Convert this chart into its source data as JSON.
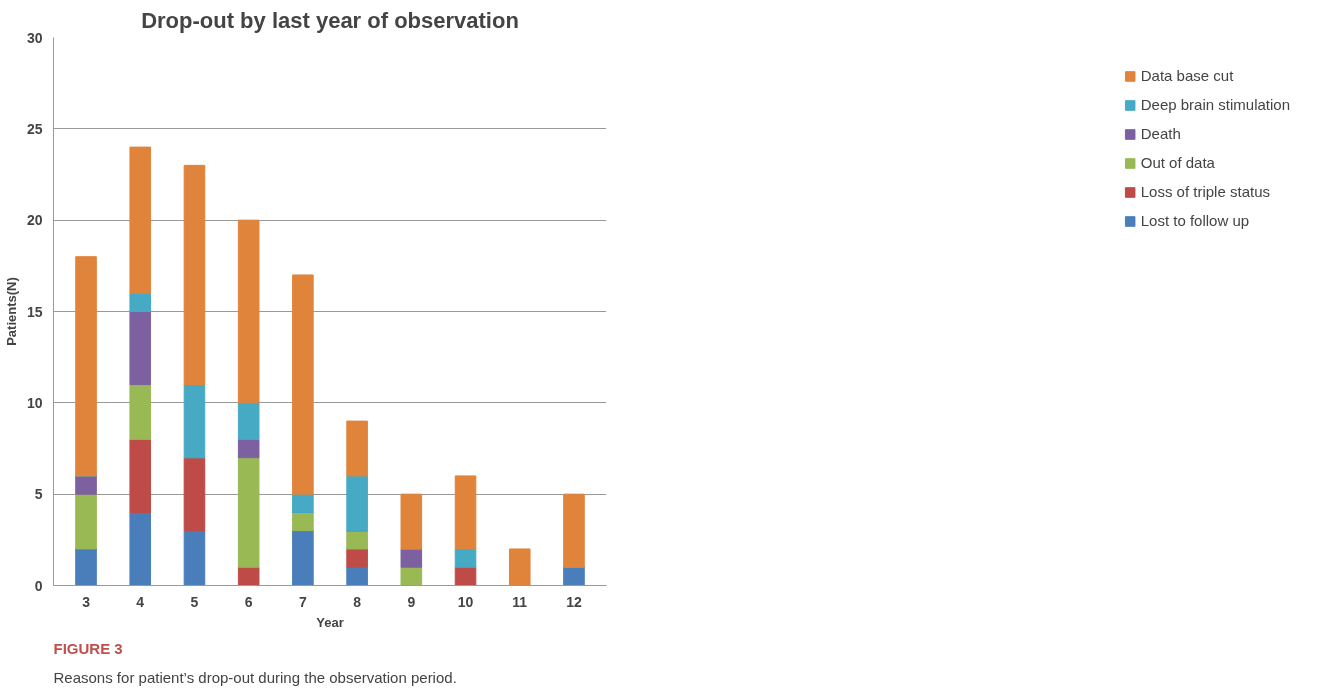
{
  "chart_data": {
    "type": "bar",
    "stacked": true,
    "title": "Drop-out by last year of observation",
    "xlabel": "Year",
    "ylabel": "Patients(N)",
    "categories": [
      "3",
      "4",
      "5",
      "6",
      "7",
      "8",
      "9",
      "10",
      "11",
      "12"
    ],
    "series": [
      {
        "name": "Lost to follow up",
        "color": "#4a7ebb",
        "values": [
          2,
          4,
          3,
          0,
          3,
          1,
          0,
          0,
          0,
          1
        ]
      },
      {
        "name": "Loss of triple status",
        "color": "#be4b48",
        "values": [
          0,
          4,
          4,
          1,
          0,
          1,
          0,
          1,
          0,
          0
        ]
      },
      {
        "name": "Out of data",
        "color": "#98b954",
        "values": [
          3,
          3,
          0,
          6,
          1,
          1,
          1,
          0,
          0,
          0
        ]
      },
      {
        "name": "Death",
        "color": "#7d60a0",
        "values": [
          1,
          4,
          0,
          1,
          0,
          0,
          1,
          0,
          0,
          0
        ]
      },
      {
        "name": "Deep brain stimulation",
        "color": "#46aac5",
        "values": [
          0,
          1,
          4,
          2,
          1,
          3,
          0,
          1,
          0,
          0
        ]
      },
      {
        "name": "Data base cut",
        "color": "#e0843c",
        "values": [
          12,
          8,
          12,
          10,
          12,
          3,
          3,
          4,
          2,
          4
        ]
      }
    ],
    "ylim": [
      0,
      30
    ],
    "yticks": [
      0,
      5,
      10,
      15,
      20,
      25,
      30
    ],
    "grid": "y",
    "legend": "right",
    "annotations": [
      "FIGURE 3",
      "Reasons for patient’s drop-out during the observation period."
    ]
  }
}
